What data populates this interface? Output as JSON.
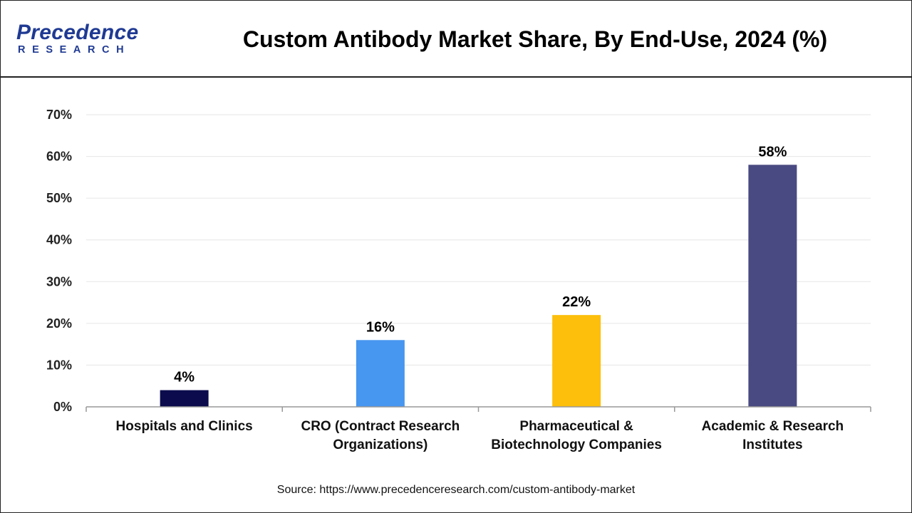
{
  "brand": {
    "name": "Precedence",
    "sub": "RESEARCH",
    "color": "#1f3a93"
  },
  "chart_data": {
    "type": "bar",
    "title": "Custom Antibody Market Share, By End-Use, 2024 (%)",
    "categories": [
      [
        "Hospitals and Clinics"
      ],
      [
        "CRO (Contract Research",
        "Organizations)"
      ],
      [
        "Pharmaceutical &",
        "Biotechnology Companies"
      ],
      [
        "Academic & Research",
        "Institutes"
      ]
    ],
    "values": [
      4,
      16,
      22,
      58
    ],
    "value_labels": [
      "4%",
      "16%",
      "22%",
      "58%"
    ],
    "colors": [
      "#0b0b4d",
      "#4796f0",
      "#fdbf0b",
      "#4a4a82"
    ],
    "ylim": [
      0,
      70
    ],
    "yticks": [
      0,
      10,
      20,
      30,
      40,
      50,
      60,
      70
    ],
    "ytick_labels": [
      "0%",
      "10%",
      "20%",
      "30%",
      "40%",
      "50%",
      "60%",
      "70%"
    ],
    "xlabel": "",
    "ylabel": "",
    "grid": true
  },
  "source": "Source: https://www.precedenceresearch.com/custom-antibody-market"
}
